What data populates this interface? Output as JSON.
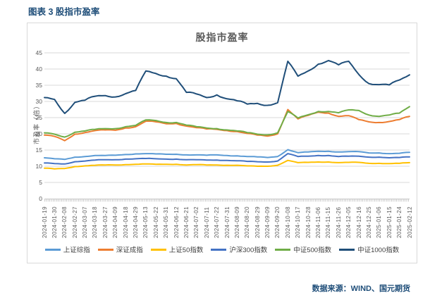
{
  "page": {
    "header": "图表 3 股指市盈率",
    "source": "数据来源：WIND、国元期货"
  },
  "chart_data": {
    "type": "line",
    "title": "股指市盈率",
    "xlabel": "",
    "ylabel": "市盈率（倍）",
    "ylim": [
      0,
      45
    ],
    "ytick_step": 5,
    "grid": true,
    "legend_position": "bottom",
    "axis_color": "#595959",
    "gridline_color": "#D9D9D9",
    "categories": [
      "2024-01-19",
      "2024-01-30",
      "2024-02-08",
      "2024-02-27",
      "2024-03-07",
      "2024-03-18",
      "2024-03-27",
      "2024-04-09",
      "2024-04-18",
      "2024-04-29",
      "2024-05-13",
      "2024-05-22",
      "2024-05-31",
      "2024-06-12",
      "2024-06-21",
      "2024-07-02",
      "2024-07-11",
      "2024-07-22",
      "2024-07-31",
      "2024-08-09",
      "2024-08-20",
      "2024-08-29",
      "2024-09-09",
      "2024-09-20",
      "2024-10-08",
      "2024-10-17",
      "2024-10-28",
      "2024-11-06",
      "2024-11-15",
      "2024-11-26",
      "2024-12-05",
      "2024-12-16",
      "2024-12-25",
      "2025-01-06",
      "2025-01-15",
      "2025-01-24",
      "2025-02-12"
    ],
    "series": [
      {
        "name": "上证综指",
        "color": "#5B9BD5",
        "values": [
          12.6,
          12.3,
          12.1,
          12.8,
          13.0,
          13.3,
          13.3,
          13.4,
          13.6,
          13.8,
          13.9,
          13.8,
          13.7,
          13.7,
          13.5,
          13.5,
          13.4,
          13.5,
          13.3,
          13.2,
          13.0,
          12.9,
          12.7,
          13.0,
          15.1,
          14.2,
          14.4,
          14.6,
          14.6,
          14.4,
          14.5,
          14.5,
          14.1,
          14.1,
          13.9,
          14.0,
          14.3
        ]
      },
      {
        "name": "深证成指",
        "color": "#ED7D31",
        "values": [
          19.6,
          19.2,
          17.9,
          19.9,
          20.4,
          21.0,
          21.2,
          21.1,
          21.8,
          22.2,
          23.9,
          23.7,
          23.1,
          23.2,
          22.4,
          21.9,
          21.5,
          21.4,
          21.0,
          20.7,
          20.1,
          19.6,
          19.3,
          20.0,
          27.5,
          24.6,
          25.7,
          26.7,
          26.4,
          25.4,
          25.6,
          24.4,
          23.7,
          23.5,
          23.8,
          24.4,
          25.4
        ]
      },
      {
        "name": "上证50指数",
        "color": "#FFC000",
        "values": [
          9.4,
          9.2,
          9.3,
          9.9,
          10.1,
          10.3,
          10.4,
          10.4,
          10.5,
          10.6,
          10.7,
          10.6,
          10.6,
          10.6,
          10.4,
          10.5,
          10.4,
          10.4,
          10.3,
          10.3,
          10.1,
          10.0,
          10.0,
          10.3,
          11.8,
          11.1,
          11.2,
          11.3,
          11.3,
          11.1,
          11.2,
          11.2,
          10.9,
          10.9,
          10.8,
          10.9,
          11.1
        ]
      },
      {
        "name": "沪深300指数",
        "color": "#4472C4",
        "values": [
          11.0,
          10.8,
          10.7,
          11.4,
          11.6,
          11.9,
          12.0,
          12.0,
          12.2,
          12.3,
          12.4,
          12.3,
          12.2,
          12.2,
          12.0,
          12.0,
          11.9,
          11.9,
          11.8,
          11.7,
          11.5,
          11.4,
          11.3,
          11.6,
          13.9,
          13.0,
          13.1,
          13.3,
          13.3,
          13.0,
          13.1,
          13.1,
          12.8,
          12.8,
          12.6,
          12.7,
          12.9
        ]
      },
      {
        "name": "中证500指数",
        "color": "#70AD47",
        "values": [
          20.3,
          19.9,
          19.0,
          20.5,
          20.9,
          21.4,
          21.6,
          21.6,
          22.2,
          22.6,
          24.3,
          24.1,
          23.5,
          23.5,
          22.7,
          22.2,
          21.8,
          21.6,
          21.2,
          20.9,
          20.4,
          19.9,
          19.7,
          20.3,
          26.9,
          24.9,
          25.9,
          26.9,
          26.9,
          26.5,
          27.4,
          27.2,
          25.8,
          25.4,
          25.8,
          26.4,
          28.4
        ]
      },
      {
        "name": "中证1000指数",
        "color": "#1F4E79",
        "values": [
          31.2,
          30.6,
          26.3,
          29.7,
          30.4,
          31.6,
          31.8,
          31.4,
          32.4,
          33.4,
          39.4,
          38.6,
          37.8,
          37.0,
          32.8,
          32.3,
          31.2,
          32.0,
          30.8,
          30.2,
          29.2,
          29.4,
          28.8,
          29.6,
          42.4,
          37.8,
          39.4,
          41.5,
          42.6,
          41.3,
          42.4,
          38.3,
          35.5,
          35.2,
          35.1,
          36.6,
          38.2
        ]
      }
    ]
  }
}
